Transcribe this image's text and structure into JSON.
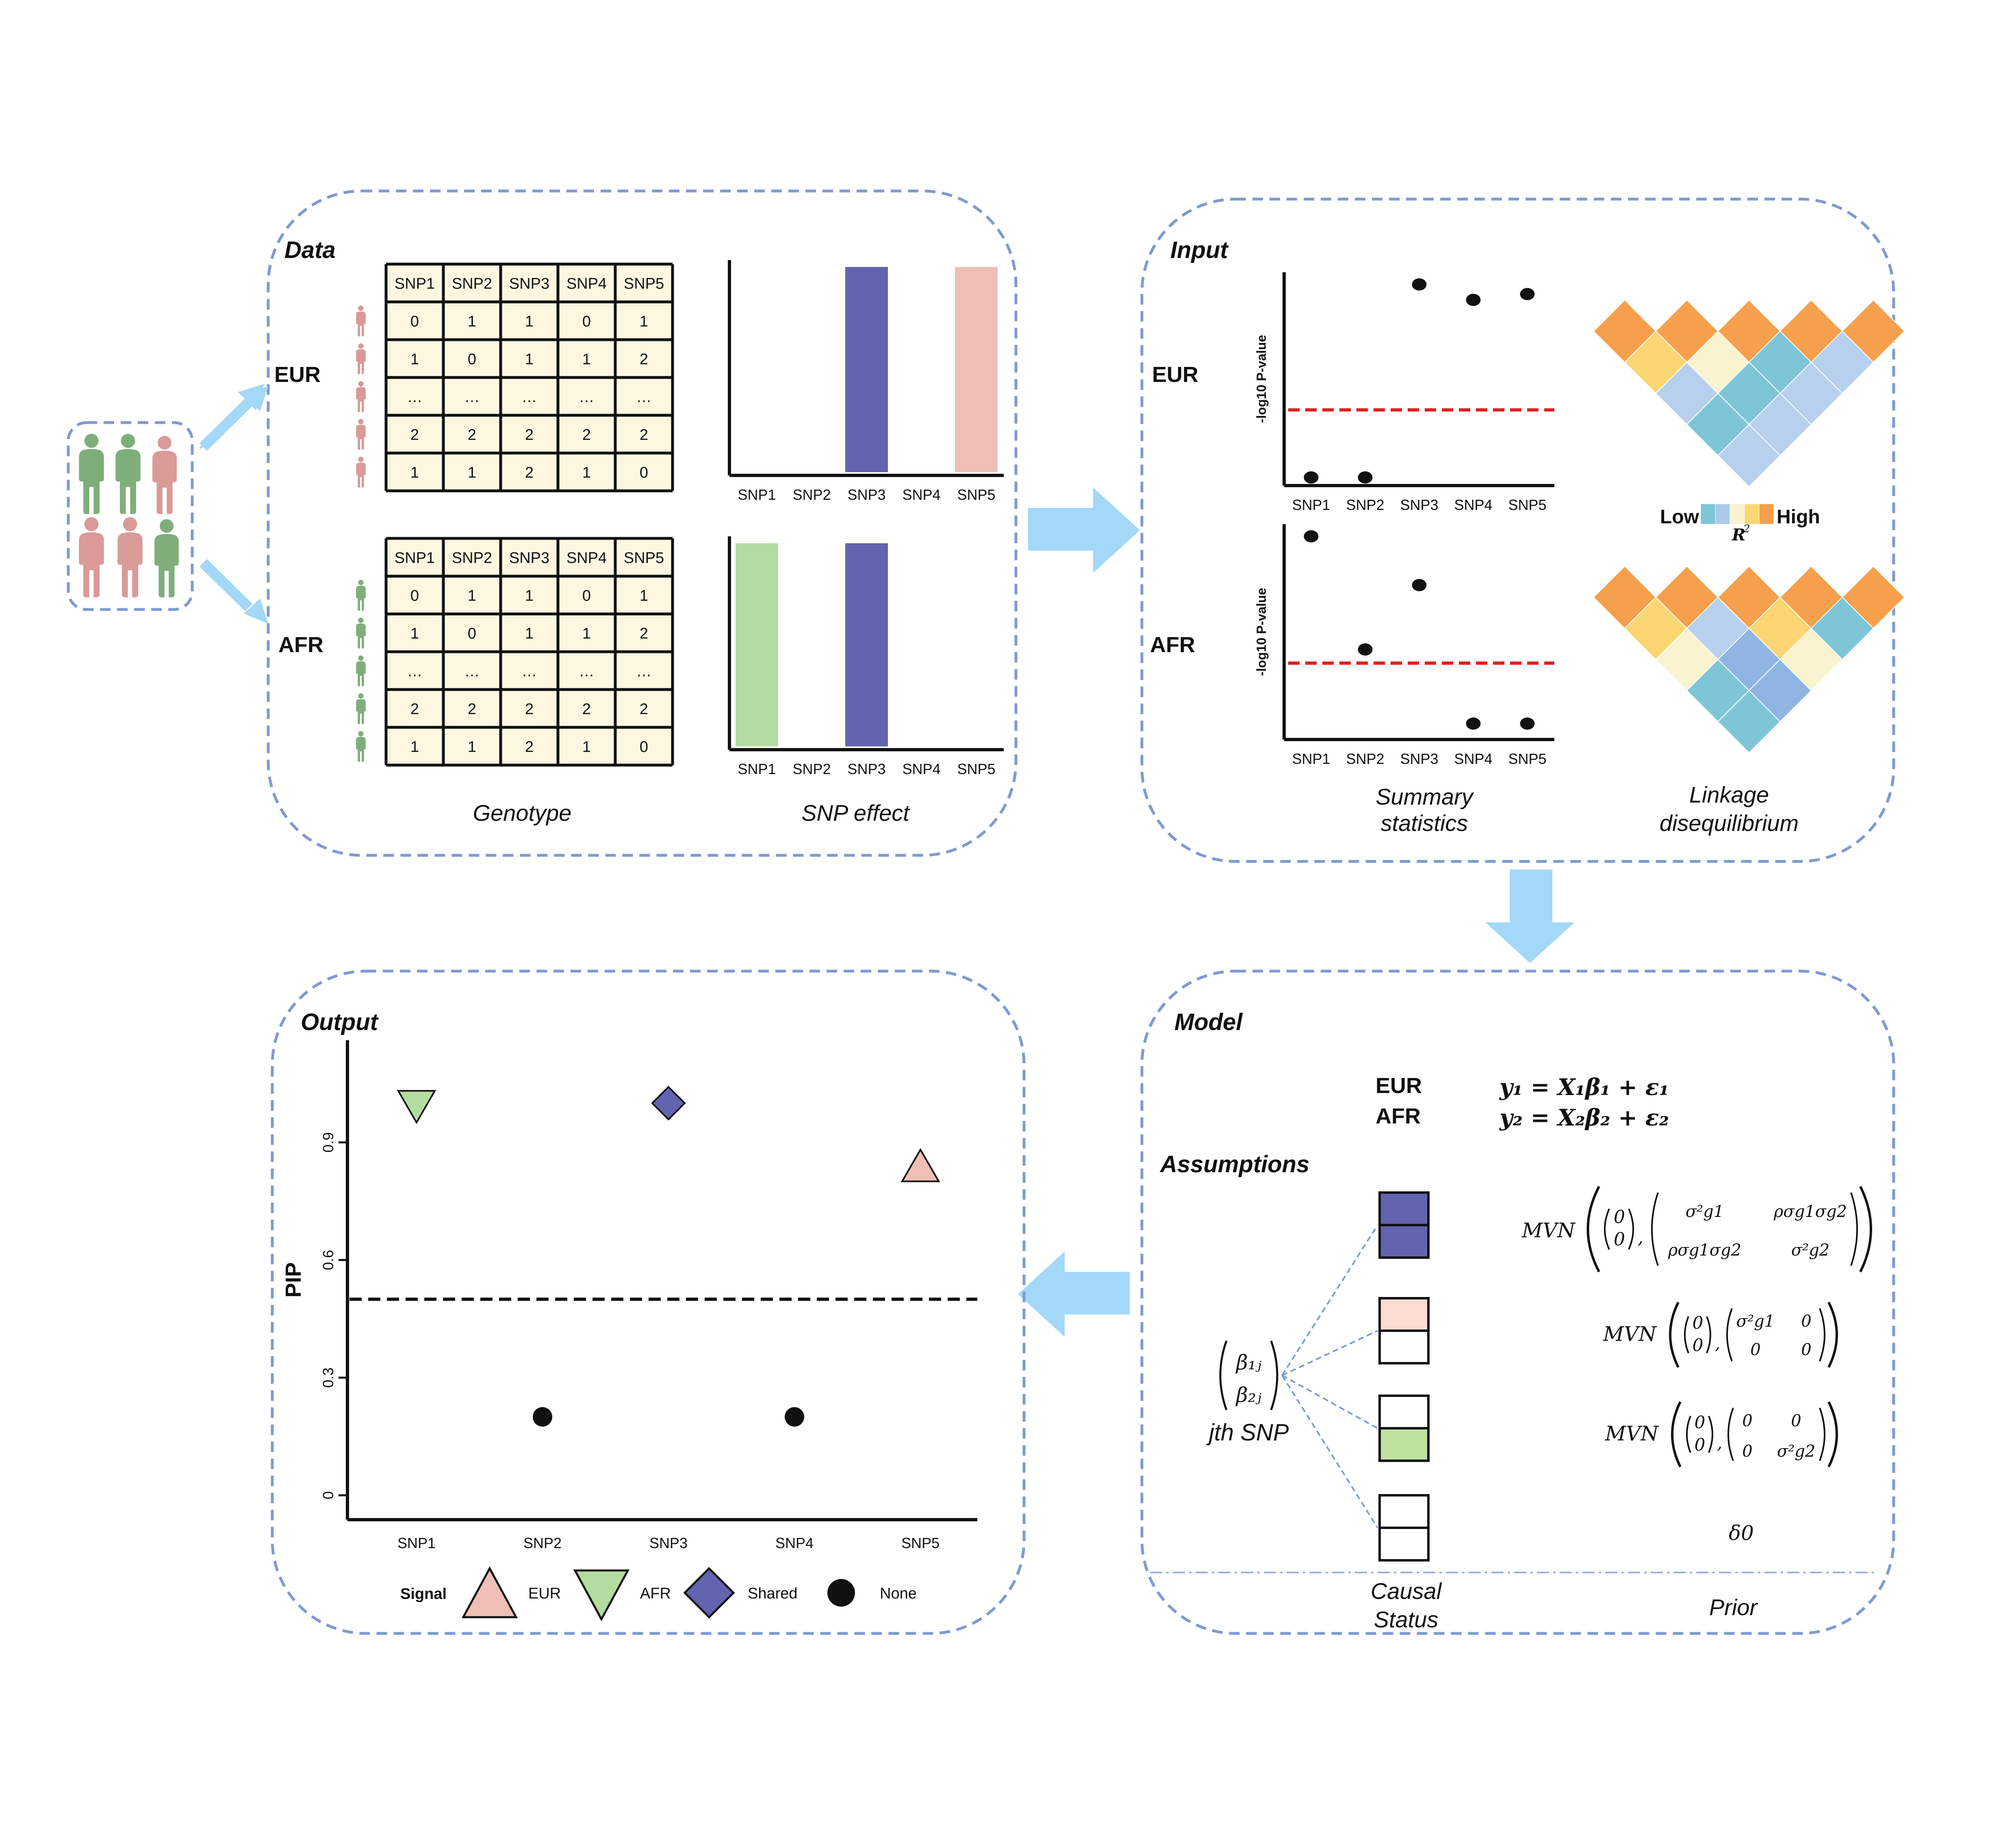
{
  "panels": {
    "data": "Data",
    "input": "Input",
    "model": "Model",
    "output": "Output"
  },
  "populations": {
    "eur": "EUR",
    "afr": "AFR"
  },
  "colors": {
    "eur": "#efbfb6",
    "afr": "#b4dca1",
    "shared": "#6264b0",
    "person_green": "#7fae7b",
    "person_pink": "#d99a98",
    "panel_border": "#7f9bcf",
    "arrow": "#a3d8f8",
    "threshold_red": "#e02020",
    "matrix_fill": "#fdf7e2"
  },
  "snps": [
    "SNP1",
    "SNP2",
    "SNP3",
    "SNP4",
    "SNP5"
  ],
  "genotype": {
    "caption": "Genotype",
    "eur_rows": [
      [
        "0",
        "1",
        "1",
        "0",
        "1"
      ],
      [
        "1",
        "0",
        "1",
        "1",
        "2"
      ],
      [
        "…",
        "…",
        "…",
        "…",
        "…"
      ],
      [
        "2",
        "2",
        "2",
        "2",
        "2"
      ],
      [
        "1",
        "1",
        "2",
        "1",
        "0"
      ]
    ],
    "afr_rows": [
      [
        "0",
        "1",
        "1",
        "0",
        "1"
      ],
      [
        "1",
        "0",
        "1",
        "1",
        "2"
      ],
      [
        "…",
        "…",
        "…",
        "…",
        "…"
      ],
      [
        "2",
        "2",
        "2",
        "2",
        "2"
      ],
      [
        "1",
        "1",
        "2",
        "1",
        "0"
      ]
    ]
  },
  "snp_effect": {
    "caption": "SNP effect",
    "eur": [
      {
        "snp": "SNP3",
        "value": 1,
        "type": "shared"
      },
      {
        "snp": "SNP5",
        "value": 1,
        "type": "eur"
      }
    ],
    "afr": [
      {
        "snp": "SNP1",
        "value": 1,
        "type": "afr"
      },
      {
        "snp": "SNP3",
        "value": 1,
        "type": "shared"
      }
    ]
  },
  "summary_stats": {
    "caption_line1": "Summary",
    "caption_line2": "statistics",
    "ylabel": "-log10 P-value",
    "threshold": 0.35,
    "eur_values": [
      0,
      0,
      1.0,
      0.92,
      0.95
    ],
    "afr_values": [
      1.0,
      0.42,
      0.75,
      0.04,
      0.04
    ]
  },
  "ld": {
    "caption_line1": "Linkage",
    "caption_line2": "disequilibrium",
    "legend_low": "Low",
    "legend_high": "High",
    "legend_symbol": "R",
    "legend_sup": "2",
    "palette": [
      "#7ec5d8",
      "#a9cbe9",
      "#f9f3cf",
      "#fbd673",
      "#f6a04d"
    ],
    "eur_matrix": [
      [
        "#f6a04d",
        "#f6a04d",
        "#f6a04d",
        "#f6a04d",
        "#f6a04d"
      ],
      [
        "#fbd673",
        "#f9f3cf",
        "#7ec5d8",
        "#b7d0ed"
      ],
      [
        "#b7d0ed",
        "#7ec5d8",
        "#b7d0ed"
      ],
      [
        "#7ec5d8",
        "#b7d0ed"
      ],
      [
        "#b7d0ed"
      ]
    ],
    "afr_matrix": [
      [
        "#f6a04d",
        "#f6a04d",
        "#f6a04d",
        "#f6a04d",
        "#f6a04d"
      ],
      [
        "#fbd673",
        "#b7d0ed",
        "#fbd673",
        "#7ec5d8"
      ],
      [
        "#f9f3cf",
        "#8fb5e2",
        "#f9f3cf"
      ],
      [
        "#7ec5d8",
        "#8fb5e2"
      ],
      [
        "#7ec5d8"
      ]
    ]
  },
  "model": {
    "eq_eur": "y₁ = X₁β₁ + ε₁",
    "eq_afr": "y₂ = X₂β₂ + ε₂",
    "assumptions": "Assumptions",
    "vector_top": "β₁ⱼ",
    "vector_bottom": "β₂ⱼ",
    "snp_label": "jth SNP",
    "status_caption_line1": "Causal",
    "status_caption_line2": "Status",
    "prior_caption": "Prior",
    "mvn": "MVN",
    "zero": "0",
    "sigma_g1_sq": "σ²g1",
    "sigma_g2_sq": "σ²g2",
    "rho_cov": "ρσg1σg2",
    "delta": "δ0",
    "status_boxes": [
      {
        "top": "#6264b0",
        "bottom": "#6264b0"
      },
      {
        "top": "#fbdcd3",
        "bottom": "#ffffff"
      },
      {
        "top": "#ffffff",
        "bottom": "#bfe2a0"
      },
      {
        "top": "#ffffff",
        "bottom": "#ffffff"
      }
    ]
  },
  "output": {
    "ylabel": "PIP",
    "yticks": [
      "0",
      "0.3",
      "0.6",
      "0.9"
    ],
    "threshold": 0.5,
    "points": [
      {
        "snp": "SNP1",
        "pip": 0.99,
        "signal": "AFR"
      },
      {
        "snp": "SNP2",
        "pip": 0.2,
        "signal": "None"
      },
      {
        "snp": "SNP3",
        "pip": 1.0,
        "signal": "Shared"
      },
      {
        "snp": "SNP4",
        "pip": 0.2,
        "signal": "None"
      },
      {
        "snp": "SNP5",
        "pip": 0.84,
        "signal": "EUR"
      }
    ],
    "legend_title": "Signal",
    "legend": [
      {
        "label": "EUR",
        "shape": "triangle-up"
      },
      {
        "label": "AFR",
        "shape": "triangle-down"
      },
      {
        "label": "Shared",
        "shape": "diamond"
      },
      {
        "label": "None",
        "shape": "circle"
      }
    ]
  },
  "chart_data": [
    {
      "type": "bar",
      "categories": [
        "SNP1",
        "SNP2",
        "SNP3",
        "SNP4",
        "SNP5"
      ],
      "series": [
        {
          "name": "EUR",
          "values": [
            0,
            0,
            1,
            0,
            1
          ]
        },
        {
          "name": "AFR",
          "values": [
            1,
            0,
            1,
            0,
            0
          ]
        }
      ]
    },
    {
      "type": "scatter",
      "x": [
        "SNP1",
        "SNP2",
        "SNP3",
        "SNP4",
        "SNP5"
      ],
      "series": [
        {
          "name": "EUR",
          "values": [
            0,
            0,
            1.0,
            0.92,
            0.95
          ]
        },
        {
          "name": "AFR",
          "values": [
            1.0,
            0.42,
            0.75,
            0.04,
            0.04
          ]
        }
      ],
      "ylabel": "-log10 P-value"
    },
    {
      "type": "scatter",
      "x": [
        "SNP1",
        "SNP2",
        "SNP3",
        "SNP4",
        "SNP5"
      ],
      "values": [
        0.99,
        0.2,
        1.0,
        0.2,
        0.84
      ],
      "ylabel": "PIP",
      "ylim": [
        0,
        1
      ]
    }
  ]
}
